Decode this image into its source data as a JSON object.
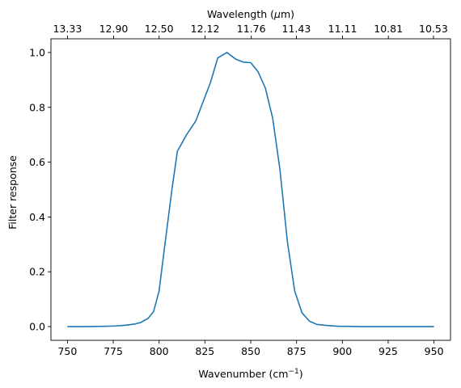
{
  "chart_data": {
    "type": "line",
    "xlabel": "Wavenumber (cm",
    "xlabel_sup": "−1",
    "xlabel_end": ")",
    "ylabel": "Filter response",
    "top_label_pre": "Wavelength (",
    "top_label_mu": "μ",
    "top_label_post": "m)",
    "xlim": [
      741,
      959
    ],
    "ylim": [
      -0.05,
      1.05
    ],
    "x_ticks": [
      750,
      775,
      800,
      825,
      850,
      875,
      900,
      925,
      950
    ],
    "y_ticks": [
      0.0,
      0.2,
      0.4,
      0.6,
      0.8,
      1.0
    ],
    "y_tick_labels": [
      "0.0",
      "0.2",
      "0.4",
      "0.6",
      "0.8",
      "1.0"
    ],
    "top_ticks": [
      {
        "value": 750.0,
        "label": "13.33"
      },
      {
        "value": 775.2,
        "label": "12.90"
      },
      {
        "value": 800.0,
        "label": "12.50"
      },
      {
        "value": 825.1,
        "label": "12.12"
      },
      {
        "value": 850.3,
        "label": "11.76"
      },
      {
        "value": 874.9,
        "label": "11.43"
      },
      {
        "value": 900.1,
        "label": "11.11"
      },
      {
        "value": 925.1,
        "label": "10.81"
      },
      {
        "value": 949.7,
        "label": "10.53"
      }
    ],
    "series": [
      {
        "color": "#1f77b4",
        "x": [
          750,
          760,
          770,
          775,
          780,
          784,
          787,
          790,
          794,
          797,
          800,
          803,
          807,
          810,
          815,
          820,
          824,
          828,
          832,
          837,
          842,
          846,
          850,
          854,
          858,
          862,
          866,
          870,
          874,
          878,
          882,
          886,
          890,
          894,
          898,
          902,
          910,
          918,
          925,
          935,
          950
        ],
        "y": [
          0.0,
          0.0,
          0.001,
          0.002,
          0.004,
          0.007,
          0.01,
          0.015,
          0.03,
          0.055,
          0.13,
          0.29,
          0.5,
          0.64,
          0.7,
          0.75,
          0.82,
          0.89,
          0.98,
          1.0,
          0.975,
          0.965,
          0.963,
          0.93,
          0.87,
          0.76,
          0.57,
          0.31,
          0.13,
          0.05,
          0.02,
          0.008,
          0.005,
          0.003,
          0.001,
          0.001,
          0.0,
          0.0,
          0.0,
          0.0,
          0.0
        ]
      }
    ],
    "grid": false,
    "legend": "none"
  }
}
